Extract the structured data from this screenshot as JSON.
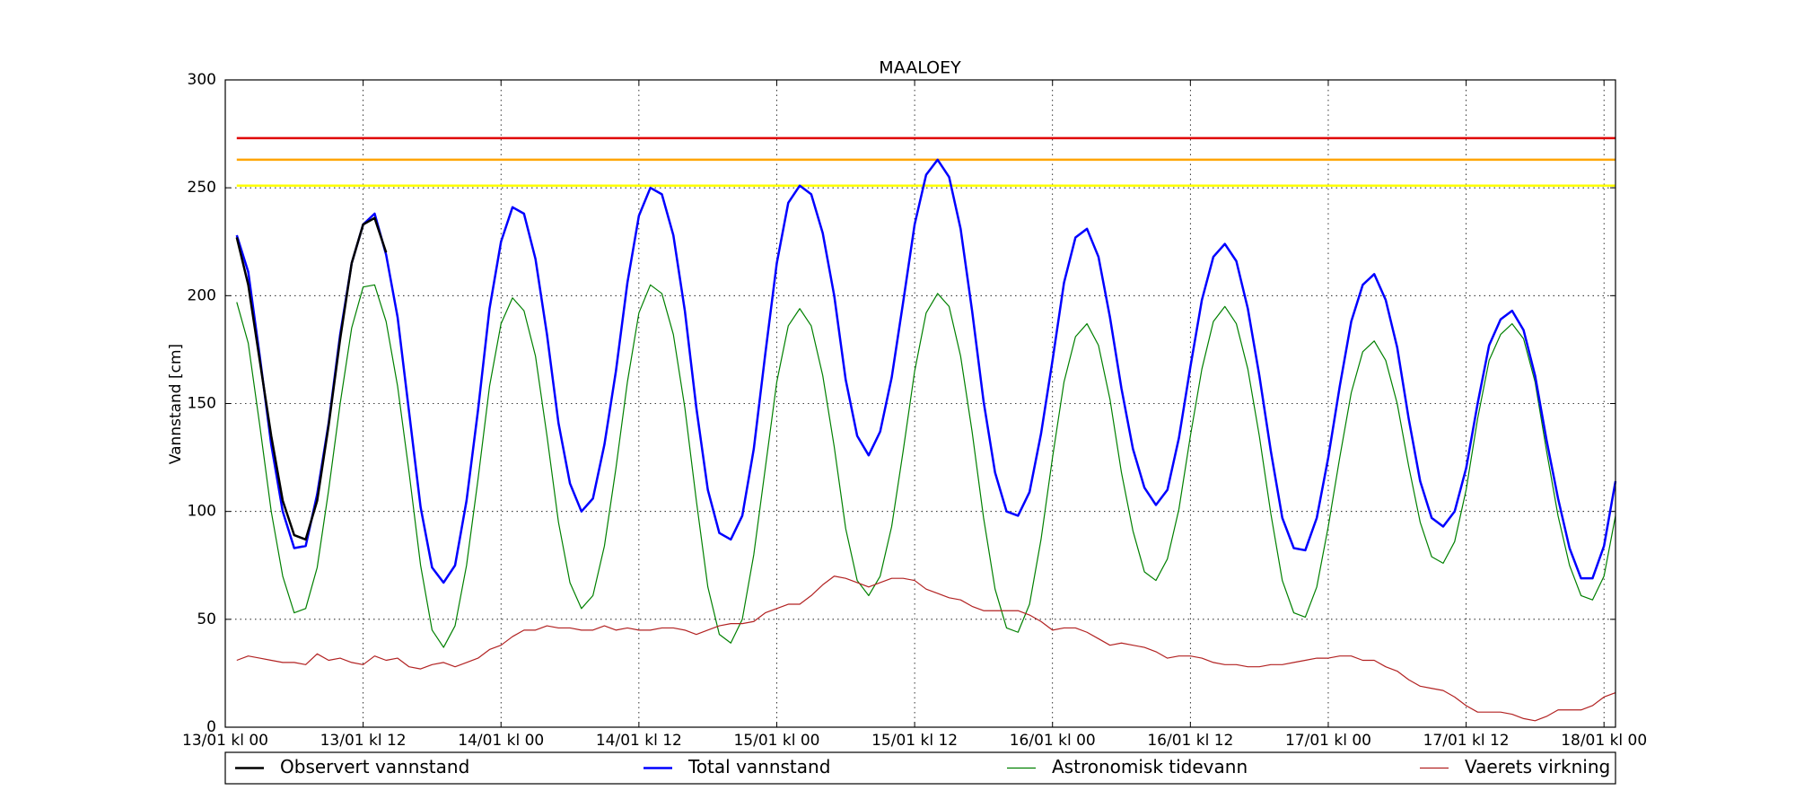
{
  "chart_data": {
    "type": "line",
    "title": "MAALOEY",
    "y_label": "Vannstand [cm]",
    "x": [
      1,
      2,
      3,
      4,
      5,
      6,
      7,
      8,
      9,
      10,
      11,
      12,
      13,
      14,
      15,
      16,
      17,
      18,
      19,
      20,
      21,
      22,
      23,
      24,
      25,
      26,
      27,
      28,
      29,
      30,
      31,
      32,
      33,
      34,
      35,
      36,
      37,
      38,
      39,
      40,
      41,
      42,
      43,
      44,
      45,
      46,
      47,
      48,
      49,
      50,
      51,
      52,
      53,
      54,
      55,
      56,
      57,
      58,
      59,
      60,
      61,
      62,
      63,
      64,
      65,
      66,
      67,
      68,
      69,
      70,
      71,
      72,
      73,
      74,
      75,
      76,
      77,
      78,
      79,
      80,
      81,
      82,
      83,
      84,
      85,
      86,
      87,
      88,
      89,
      90,
      91,
      92,
      93,
      94,
      95,
      96,
      97,
      98,
      99,
      100,
      101,
      102,
      103,
      104,
      105,
      106,
      107,
      108,
      109,
      110,
      111,
      112,
      113,
      114,
      115,
      116,
      117,
      118,
      119,
      120,
      121
    ],
    "series": [
      {
        "name": "Observert vannstand",
        "color": "#000000",
        "width": 2.5,
        "values": [
          227,
          205,
          170,
          135,
          105,
          89,
          87,
          105,
          140,
          180,
          215,
          233,
          236,
          220,
          null,
          null,
          null,
          null,
          null,
          null,
          null,
          null,
          null,
          null,
          null,
          null,
          null,
          null,
          null,
          null,
          null,
          null,
          null,
          null,
          null,
          null,
          null,
          null,
          null,
          null,
          null,
          null,
          null,
          null,
          null,
          null,
          null,
          null,
          null,
          null,
          null,
          null,
          null,
          null,
          null,
          null,
          null,
          null,
          null,
          null,
          null,
          null,
          null,
          null,
          null,
          null,
          null,
          null,
          null,
          null,
          null,
          null,
          null,
          null,
          null,
          null,
          null,
          null,
          null,
          null,
          null,
          null,
          null,
          null,
          null,
          null,
          null,
          null,
          null,
          null,
          null,
          null,
          null,
          null,
          null,
          null,
          null,
          null,
          null,
          null,
          null,
          null,
          null,
          null,
          null,
          null,
          null,
          null,
          null,
          null,
          null,
          null,
          null,
          null,
          null,
          null,
          null,
          null,
          null,
          null,
          null
        ]
      },
      {
        "name": "Total vannstand",
        "color": "#0000ff",
        "width": 2.5,
        "values": [
          228,
          211,
          172,
          131,
          100,
          83,
          84,
          108,
          141,
          182,
          215,
          233,
          238,
          219,
          190,
          146,
          102,
          74,
          67,
          75,
          105,
          147,
          194,
          225,
          241,
          238,
          217,
          182,
          141,
          113,
          100,
          106,
          131,
          165,
          206,
          237,
          250,
          247,
          228,
          193,
          148,
          110,
          90,
          87,
          98,
          129,
          173,
          215,
          243,
          251,
          247,
          229,
          200,
          161,
          135,
          126,
          137,
          162,
          197,
          233,
          256,
          263,
          255,
          231,
          193,
          151,
          118,
          100,
          98,
          109,
          136,
          170,
          206,
          227,
          231,
          218,
          190,
          157,
          129,
          111,
          103,
          110,
          134,
          167,
          198,
          218,
          224,
          216,
          194,
          163,
          128,
          97,
          83,
          82,
          97,
          125,
          158,
          188,
          205,
          210,
          198,
          176,
          143,
          114,
          97,
          93,
          100,
          120,
          150,
          177,
          189,
          193,
          184,
          163,
          133,
          106,
          83,
          69,
          69,
          84,
          114
        ]
      },
      {
        "name": "Astronomisk tidevann",
        "color": "#008000",
        "width": 1.2,
        "values": [
          197,
          178,
          140,
          100,
          70,
          53,
          55,
          74,
          110,
          150,
          185,
          204,
          205,
          188,
          158,
          118,
          75,
          45,
          37,
          47,
          75,
          115,
          158,
          187,
          199,
          193,
          172,
          135,
          95,
          67,
          55,
          61,
          84,
          120,
          160,
          192,
          205,
          201,
          182,
          148,
          105,
          65,
          43,
          39,
          50,
          80,
          120,
          160,
          186,
          194,
          186,
          163,
          130,
          92,
          68,
          61,
          70,
          93,
          128,
          165,
          192,
          201,
          195,
          172,
          137,
          97,
          64,
          46,
          44,
          57,
          87,
          125,
          160,
          181,
          187,
          177,
          152,
          118,
          91,
          72,
          68,
          78,
          101,
          135,
          166,
          188,
          195,
          187,
          166,
          135,
          99,
          68,
          53,
          51,
          65,
          93,
          125,
          155,
          174,
          179,
          170,
          150,
          121,
          95,
          79,
          76,
          86,
          110,
          143,
          170,
          182,
          187,
          180,
          160,
          128,
          98,
          75,
          61,
          59,
          70,
          98
        ]
      },
      {
        "name": "Vaerets virkning",
        "color": "#b22222",
        "width": 1.2,
        "values": [
          31,
          33,
          32,
          31,
          30,
          30,
          29,
          34,
          31,
          32,
          30,
          29,
          33,
          31,
          32,
          28,
          27,
          29,
          30,
          28,
          30,
          32,
          36,
          38,
          42,
          45,
          45,
          47,
          46,
          46,
          45,
          45,
          47,
          45,
          46,
          45,
          45,
          46,
          46,
          45,
          43,
          45,
          47,
          48,
          48,
          49,
          53,
          55,
          57,
          57,
          61,
          66,
          70,
          69,
          67,
          65,
          67,
          69,
          69,
          68,
          64,
          62,
          60,
          59,
          56,
          54,
          54,
          54,
          54,
          52,
          49,
          45,
          46,
          46,
          44,
          41,
          38,
          39,
          38,
          37,
          35,
          32,
          33,
          33,
          32,
          30,
          29,
          29,
          28,
          28,
          29,
          29,
          30,
          31,
          32,
          32,
          33,
          33,
          31,
          31,
          28,
          26,
          22,
          19,
          18,
          17,
          14,
          10,
          7,
          7,
          7,
          6,
          4,
          3,
          5,
          8,
          8,
          8,
          10,
          14,
          16
        ]
      }
    ],
    "threshold_lines": [
      {
        "value": 273,
        "color": "#e00000"
      },
      {
        "value": 263,
        "color": "#ffa500"
      },
      {
        "value": 251,
        "color": "#ffff00"
      }
    ],
    "xlim": [
      0,
      121
    ],
    "xticks": [
      {
        "value": 0,
        "label": "13/01 kl 00"
      },
      {
        "value": 12,
        "label": "13/01 kl 12"
      },
      {
        "value": 24,
        "label": "14/01 kl 00"
      },
      {
        "value": 36,
        "label": "14/01 kl 12"
      },
      {
        "value": 48,
        "label": "15/01 kl 00"
      },
      {
        "value": 60,
        "label": "15/01 kl 12"
      },
      {
        "value": 72,
        "label": "16/01 kl 00"
      },
      {
        "value": 84,
        "label": "16/01 kl 12"
      },
      {
        "value": 96,
        "label": "17/01 kl 00"
      },
      {
        "value": 108,
        "label": "17/01 kl 12"
      },
      {
        "value": 120,
        "label": "18/01 kl 00"
      }
    ],
    "ylim": [
      0,
      300
    ],
    "yticks": [
      0,
      50,
      100,
      150,
      200,
      250,
      300
    ],
    "grid": true,
    "legend": "bottom"
  }
}
